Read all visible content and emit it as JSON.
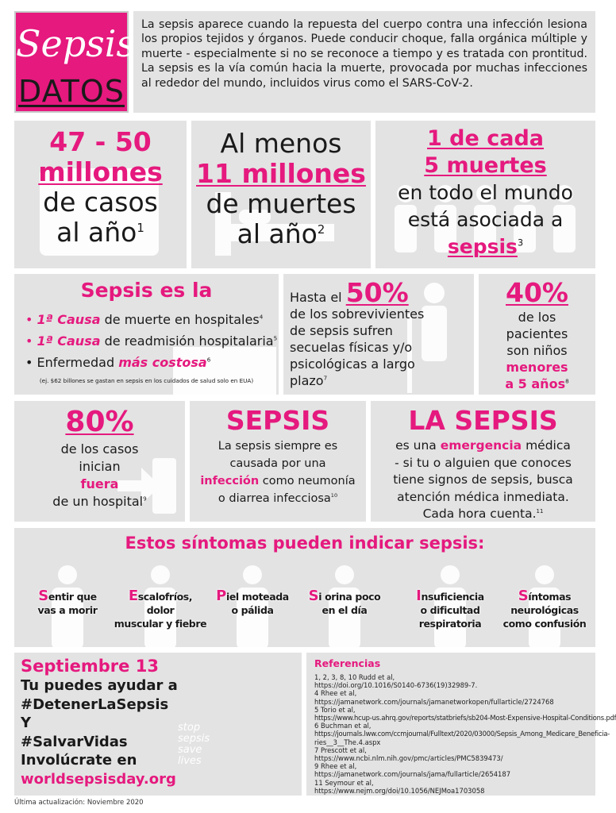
{
  "header": {
    "title_sepsis": "Sepsis",
    "title_datos": "DATOS",
    "intro": "La sepsis aparece cuando la repuesta del cuerpo contra una infección lesiona los propios tejidos y órganos. Puede conducir choque, falla orgánica múltiple y muerte - especialmente si no se reconoce a tiempo y es tratada con prontitud. La sepsis es la vía común hacia la muerte, provocada por muchas infecciones al rededor del mundo, incluidos virus como el SARS-CoV-2."
  },
  "stats_row1": {
    "cases": {
      "line1": "47 - 50",
      "line2": "millones",
      "line3": "de casos",
      "line4": "al año",
      "ref": "1"
    },
    "deaths": {
      "line1": "Al menos",
      "line2": "11 millones",
      "line3": "de muertes",
      "line4": "al año",
      "ref": "2"
    },
    "ratio": {
      "line1": "1 de cada",
      "line2": "5 muertes",
      "line3": "en todo el mundo",
      "line4": "está asociada a",
      "line5": "sepsis",
      "ref": "3"
    }
  },
  "stats_row2": {
    "causes": {
      "title": "Sepsis es la",
      "item1_em": "1ª Causa",
      "item1_text": " de muerte en hospitales",
      "item1_ref": "4",
      "item2_em": "1ª Causa",
      "item2_text": " de readmisión hospitalaria",
      "item2_ref": "5",
      "item3_text": "Enfermedad ",
      "item3_em": "más costosa",
      "item3_ref": "6",
      "note": "(ej. $62 billones se gastan en sepsis en los cuidados de salud solo en EUA)"
    },
    "survivors": {
      "pre": "Hasta el ",
      "pct": "50%",
      "l1": "de los sobrevivientes",
      "l2": "de sepsis sufren",
      "l3": "secuelas físicas y/o",
      "l4": "psicológicas a largo",
      "l5": "plazo",
      "ref": "7"
    },
    "children": {
      "pct": "40%",
      "l1": "de los",
      "l2": "pacientes",
      "l3": "son niños",
      "l4": "menores",
      "l5": "a 5 años",
      "ref": "8"
    }
  },
  "stats_row3": {
    "outside": {
      "pct": "80%",
      "l1": "de los casos",
      "l2": "inician",
      "l3": "fuera",
      "l4": "de un hospital",
      "ref": "9"
    },
    "infection": {
      "title": "SEPSIS",
      "l1": "La sepsis siempre es",
      "l2": "causada por una",
      "l3_em": "infección",
      "l3": " como neumonía",
      "l4": "o diarrea infecciosa",
      "ref": "10"
    },
    "emergency": {
      "title": "LA SEPSIS",
      "l1_pre": "es una ",
      "l1_em": "emergencia",
      "l1_post": " médica",
      "l2": "- si tu o alguien que conoces",
      "l3": "tiene signos de sepsis, busca",
      "l4": "atención médica inmediata.",
      "l5": "Cada hora cuenta.",
      "ref": "11"
    }
  },
  "symptoms": {
    "title": "Estos síntomas pueden indicar sepsis:",
    "items": [
      {
        "initial": "S",
        "rest": "entir que",
        "l2": "vas a morir"
      },
      {
        "initial": "E",
        "rest": "scalofríos, dolor",
        "l2": "muscular y fiebre"
      },
      {
        "initial": "P",
        "rest": "iel moteada",
        "l2": "o pálida"
      },
      {
        "initial": "S",
        "rest": "i orina poco",
        "l2": "en el día"
      },
      {
        "initial": "I",
        "rest": "nsuficiencia",
        "l2": "o dificultad",
        "l3": "respiratoria"
      },
      {
        "initial": "S",
        "rest": "íntomas",
        "l2": "neurológicas",
        "l3": "como confusión"
      }
    ]
  },
  "cta": {
    "date": "Septiembre 13",
    "l1": "Tu puedes ayudar a",
    "l2": "#DetenerLaSepsis",
    "l3": "Y",
    "l4": "#SalvarVidas",
    "l5": "Involúcrate en",
    "url": "worldsepsisday.org",
    "logo_text": [
      "stop",
      "sepsis",
      "save",
      "lives"
    ]
  },
  "references": {
    "title": "Referencias",
    "lines": [
      "1, 2, 3, 8, 10 Rudd et al,",
      "https://doi.org/10.1016/S0140-6736(19)32989-7.",
      "4 Rhee et al,",
      "https://jamanetwork.com/journals/jamanetworkopen/fullarticle/2724768",
      "5 Torio et al,",
      "https://www.hcup-us.ahrq.gov/reports/statbriefs/sb204-Most-Expensive-Hospital-Conditions.pdf",
      "6 Buchman et al,",
      "https://journals.lww.com/ccmjournal/Fulltext/2020/03000/Sepsis_Among_Medicare_Beneficia-",
      "ries__3__The.4.aspx",
      "7 Prescott et al,",
      "https://www.ncbi.nlm.nih.gov/pmc/articles/PMC5839473/",
      "9 Rhee et al,",
      "https://jamanetwork.com/journals/jama/fullarticle/2654187",
      "11 Seymour et al,",
      "https://www.nejm.org/doi/10.1056/NEJMoa1703058"
    ]
  },
  "footer": {
    "updated": "Última actualización: Noviembre 2020"
  }
}
